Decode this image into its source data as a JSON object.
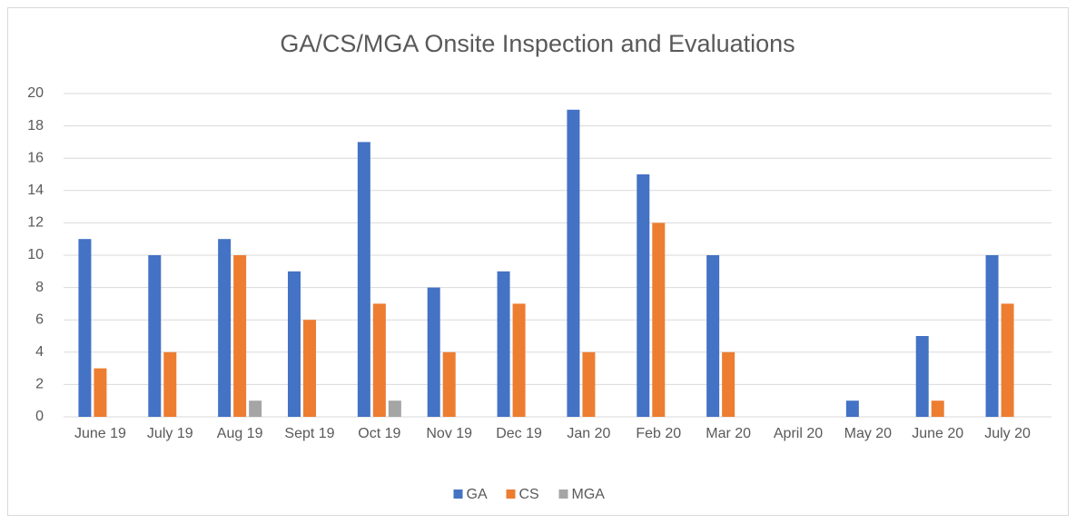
{
  "chart_data": {
    "type": "bar",
    "title": "GA/CS/MGA Onsite Inspection and Evaluations",
    "categories": [
      "June 19",
      "July 19",
      "Aug 19",
      "Sept 19",
      "Oct 19",
      "Nov 19",
      "Dec 19",
      "Jan 20",
      "Feb 20",
      "Mar 20",
      "April 20",
      "May 20",
      "June 20",
      "July 20"
    ],
    "series": [
      {
        "name": "GA",
        "color": "#4472c4",
        "values": [
          11,
          10,
          11,
          9,
          17,
          8,
          9,
          19,
          15,
          10,
          0,
          1,
          5,
          10
        ]
      },
      {
        "name": "CS",
        "color": "#ed7d31",
        "values": [
          3,
          4,
          10,
          6,
          7,
          4,
          7,
          4,
          12,
          4,
          0,
          0,
          1,
          7
        ]
      },
      {
        "name": "MGA",
        "color": "#a5a5a5",
        "values": [
          0,
          0,
          1,
          0,
          1,
          0,
          0,
          0,
          0,
          0,
          0,
          0,
          0,
          0
        ]
      }
    ],
    "ylim": [
      0,
      20
    ],
    "yticks": [
      0,
      2,
      4,
      6,
      8,
      10,
      12,
      14,
      16,
      18,
      20
    ],
    "grid": true,
    "legend": "bottom"
  }
}
